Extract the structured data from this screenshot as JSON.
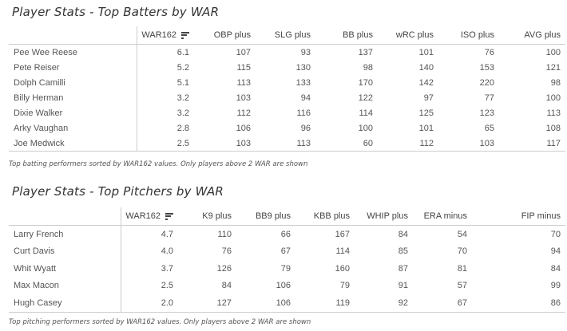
{
  "batters": {
    "title": "Player Stats - Top Batters by WAR",
    "columns": [
      "",
      "WAR162",
      "OBP plus",
      "SLG plus",
      "BB plus",
      "wRC plus",
      "ISO plus",
      "AVG plus"
    ],
    "sort_icon": "sort-descending-icon",
    "rows": [
      [
        "Pee Wee Reese",
        "6.1",
        "107",
        "93",
        "137",
        "101",
        "76",
        "100"
      ],
      [
        "Pete Reiser",
        "5.2",
        "115",
        "130",
        "98",
        "140",
        "153",
        "121"
      ],
      [
        "Dolph Camilli",
        "5.1",
        "113",
        "133",
        "170",
        "142",
        "220",
        "98"
      ],
      [
        "Billy Herman",
        "3.2",
        "103",
        "94",
        "122",
        "97",
        "77",
        "100"
      ],
      [
        "Dixie Walker",
        "3.2",
        "112",
        "116",
        "114",
        "125",
        "123",
        "113"
      ],
      [
        "Arky Vaughan",
        "2.8",
        "106",
        "96",
        "100",
        "101",
        "65",
        "108"
      ],
      [
        "Joe Medwick",
        "2.5",
        "103",
        "113",
        "60",
        "112",
        "103",
        "117"
      ]
    ],
    "caption": "Top batting performers sorted by WAR162 values. Only players above 2 WAR are shown"
  },
  "pitchers": {
    "title": "Player Stats - Top Pitchers by WAR",
    "columns": [
      "",
      "WAR162",
      "K9 plus",
      "BB9 plus",
      "KBB plus",
      "WHIP plus",
      "ERA minus",
      "FIP minus"
    ],
    "sort_icon": "sort-descending-icon",
    "rows": [
      [
        "Larry French",
        "4.7",
        "110",
        "66",
        "167",
        "84",
        "54",
        "70"
      ],
      [
        "Curt Davis",
        "4.0",
        "76",
        "67",
        "114",
        "85",
        "70",
        "94"
      ],
      [
        "Whit Wyatt",
        "3.7",
        "126",
        "79",
        "160",
        "87",
        "81",
        "84"
      ],
      [
        "Max Macon",
        "2.5",
        "84",
        "106",
        "79",
        "91",
        "57",
        "99"
      ],
      [
        "Hugh Casey",
        "2.0",
        "127",
        "106",
        "119",
        "92",
        "67",
        "86"
      ]
    ],
    "caption": "Top pitching performers sorted by WAR162 values. Only players above 2 WAR are shown"
  }
}
